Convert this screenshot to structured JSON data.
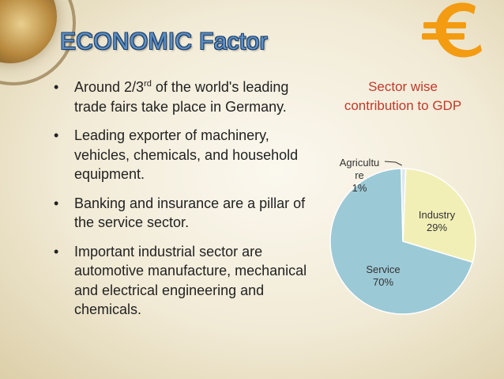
{
  "slide": {
    "title": "ECONOMIC Factor",
    "bullets": [
      {
        "pre": "Around 2/3",
        "sup": "rd",
        "post": " of the world's leading trade fairs take place in Germany."
      },
      {
        "pre": "Leading exporter of machinery, vehicles, chemicals, and household equipment.",
        "sup": "",
        "post": ""
      },
      {
        "pre": "Banking and insurance are a pillar of the service sector.",
        "sup": "",
        "post": ""
      },
      {
        "pre": "Important industrial sector are automotive manufacture, mechanical and electrical engineering and chemicals.",
        "sup": "",
        "post": ""
      }
    ],
    "bullet_char": "•",
    "euro_symbol": "€",
    "euro_color": "#f39c12"
  },
  "chart_data": {
    "type": "pie",
    "title_lines": [
      "Sector wise",
      "contribution to GDP"
    ],
    "slices": [
      {
        "name": "Industry",
        "value": 29,
        "label_lines": [
          "Industry",
          "29%"
        ],
        "color": "#f2efb6"
      },
      {
        "name": "Service",
        "value": 70,
        "label_lines": [
          "Service",
          "70%"
        ],
        "color": "#9cc9d6"
      },
      {
        "name": "Agriculture",
        "value": 1,
        "label_lines": [
          "Agricultu",
          "re",
          "1%"
        ],
        "color": "#dde8ee"
      }
    ],
    "legend": "none"
  }
}
